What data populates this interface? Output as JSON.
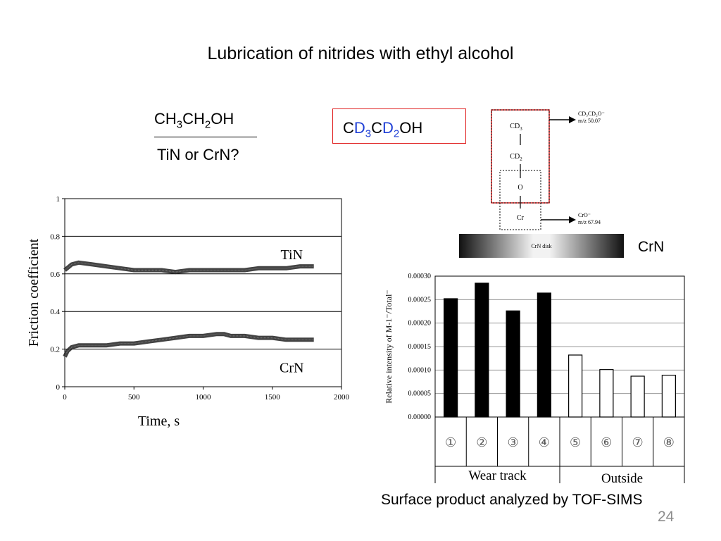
{
  "slide": {
    "title": "Lubrication of nitrides with ethyl alcohol",
    "page_number": "24",
    "formula_top": {
      "p1": "CH",
      "s1": "3",
      "p2": "CH",
      "s2": "2",
      "p3": "OH"
    },
    "formula_bottom": "TiN or CrN?",
    "formula_boxed": {
      "p1": "C",
      "p2": "D",
      "s1": "3",
      "p3": "C",
      "p4": "D",
      "s2": "2",
      "p5": "OH"
    },
    "crn_label": "CrN",
    "caption": "Surface product analyzed by TOF-SIMS"
  },
  "diagram": {
    "atoms": [
      "CD3",
      "CD2",
      "O",
      "Cr"
    ],
    "atom_cd3": "CD",
    "atom_cd3_sub": "3",
    "atom_cd2": "CD",
    "atom_cd2_sub": "2",
    "atom_o": "O",
    "atom_cr": "Cr",
    "ion_top_line1": "CD₃CD₂O⁻",
    "ion_top_line2": "m/z 50.07",
    "ion_bottom_line1": "CrO⁻",
    "ion_bottom_line2": "m/z 67.94",
    "disk_label": "CrN disk"
  },
  "chart_data": [
    {
      "type": "line",
      "ylabel": "Friction coefficient",
      "xlabel": "Time, s",
      "xlim": [
        0,
        2000
      ],
      "ylim": [
        0,
        1
      ],
      "xticks": [
        "0",
        "500",
        "1000",
        "1500",
        "2000"
      ],
      "yticks": [
        "0",
        "0.2",
        "0.4",
        "0.6",
        "0.8",
        "1"
      ],
      "grid": "horizontal",
      "series": [
        {
          "name": "TiN",
          "x": [
            0,
            50,
            100,
            200,
            300,
            400,
            500,
            600,
            700,
            800,
            900,
            1000,
            1100,
            1200,
            1300,
            1400,
            1500,
            1600,
            1700,
            1800
          ],
          "y": [
            0.62,
            0.65,
            0.66,
            0.65,
            0.64,
            0.63,
            0.62,
            0.62,
            0.62,
            0.61,
            0.62,
            0.62,
            0.62,
            0.62,
            0.62,
            0.63,
            0.63,
            0.63,
            0.64,
            0.64
          ]
        },
        {
          "name": "CrN",
          "x": [
            0,
            20,
            50,
            100,
            200,
            300,
            400,
            500,
            600,
            700,
            800,
            900,
            1000,
            1100,
            1150,
            1200,
            1300,
            1400,
            1500,
            1600,
            1700,
            1800
          ],
          "y": [
            0.16,
            0.19,
            0.21,
            0.22,
            0.22,
            0.22,
            0.23,
            0.23,
            0.24,
            0.25,
            0.26,
            0.27,
            0.27,
            0.28,
            0.28,
            0.27,
            0.27,
            0.26,
            0.26,
            0.25,
            0.25,
            0.25
          ]
        }
      ]
    },
    {
      "type": "bar",
      "ylabel": "Relative intensity of M-1⁻/Total⁻",
      "ylim": [
        0,
        0.0003
      ],
      "yticks": [
        "0.00000",
        "0.00005",
        "0.00010",
        "0.00015",
        "0.00020",
        "0.00025",
        "0.00030"
      ],
      "categories": [
        "①",
        "②",
        "③",
        "④",
        "⑤",
        "⑥",
        "⑦",
        "⑧"
      ],
      "values": [
        0.000252,
        0.000285,
        0.000226,
        0.000264,
        0.000132,
        0.000101,
        8.7e-05,
        8.9e-05
      ],
      "colors": [
        "#000000",
        "#000000",
        "#000000",
        "#000000",
        "#ffffff",
        "#ffffff",
        "#ffffff",
        "#ffffff"
      ],
      "groups": [
        {
          "label": "Wear track"
        },
        {
          "label": "Outside"
        }
      ],
      "grid": "horizontal"
    }
  ]
}
